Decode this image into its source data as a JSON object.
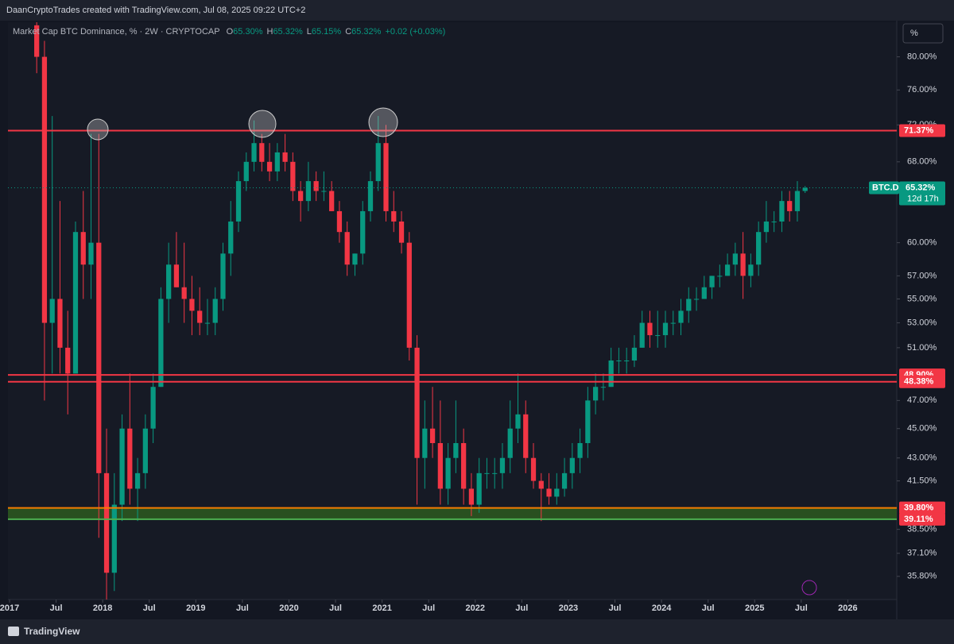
{
  "attribution": "DaanCryptoTrades created with TradingView.com, Jul 08, 2025 09:22 UTC+2",
  "unit_button": "%",
  "brand": "TradingView",
  "chart_data": {
    "type": "candlestick",
    "title": "Market Cap BTC Dominance, % · 2W · CRYPTOCAP",
    "ohlc_legend": [
      {
        "key": "O",
        "value": "65.30%"
      },
      {
        "key": "H",
        "value": "65.32%"
      },
      {
        "key": "L",
        "value": "65.15%"
      },
      {
        "key": "C",
        "value": "65.32%"
      }
    ],
    "change": "+0.02 (+0.03%)",
    "log_scale": true,
    "up_color": "#089981",
    "down_color": "#f23645",
    "ylim": [
      33.7,
      84.4
    ],
    "xlim": [
      "2017-01",
      "2026-07"
    ],
    "yticks": [
      {
        "value": 80,
        "label": "80.00%"
      },
      {
        "value": 76,
        "label": "76.00%"
      },
      {
        "value": 72,
        "label": "72.00%"
      },
      {
        "value": 68,
        "label": "68.00%"
      },
      {
        "value": 60,
        "label": "60.00%"
      },
      {
        "value": 57,
        "label": "57.00%"
      },
      {
        "value": 55,
        "label": "55.00%"
      },
      {
        "value": 53,
        "label": "53.00%"
      },
      {
        "value": 51,
        "label": "51.00%"
      },
      {
        "value": 47,
        "label": "47.00%"
      },
      {
        "value": 45,
        "label": "45.00%"
      },
      {
        "value": 43,
        "label": "43.00%"
      },
      {
        "value": 41.5,
        "label": "41.50%"
      },
      {
        "value": 38.5,
        "label": "38.50%"
      },
      {
        "value": 37.1,
        "label": "37.10%"
      },
      {
        "value": 35.8,
        "label": "35.80%"
      }
    ],
    "xticks": [
      {
        "value": "2017-01",
        "label": "2017"
      },
      {
        "value": "2017-07",
        "label": "Jul"
      },
      {
        "value": "2018-01",
        "label": "2018"
      },
      {
        "value": "2018-07",
        "label": "Jul"
      },
      {
        "value": "2019-01",
        "label": "2019"
      },
      {
        "value": "2019-07",
        "label": "Jul"
      },
      {
        "value": "2020-01",
        "label": "2020"
      },
      {
        "value": "2020-07",
        "label": "Jul"
      },
      {
        "value": "2021-01",
        "label": "2021"
      },
      {
        "value": "2021-07",
        "label": "Jul"
      },
      {
        "value": "2022-01",
        "label": "2022"
      },
      {
        "value": "2022-07",
        "label": "Jul"
      },
      {
        "value": "2023-01",
        "label": "2023"
      },
      {
        "value": "2023-07",
        "label": "Jul"
      },
      {
        "value": "2024-01",
        "label": "2024"
      },
      {
        "value": "2024-07",
        "label": "Jul"
      },
      {
        "value": "2025-01",
        "label": "2025"
      },
      {
        "value": "2025-07",
        "label": "Jul"
      },
      {
        "value": "2026-01",
        "label": "2026"
      }
    ],
    "levels": [
      {
        "value": 71.37,
        "label": "71.37%",
        "color": "#f23645"
      },
      {
        "value": 48.9,
        "label": "48.90%",
        "color": "#f23645"
      },
      {
        "value": 48.38,
        "label": "48.38%",
        "color": "#f23645"
      },
      {
        "value": 39.8,
        "label": "39.80%",
        "color": "#f57c00"
      },
      {
        "value": 39.11,
        "label": "39.11%",
        "color": "#4caf50"
      }
    ],
    "zone": {
      "low": 39.11,
      "high": 39.8,
      "color": "#2e5e1f"
    },
    "last": {
      "symbol": "BTC.D",
      "value": 65.32,
      "label": "65.32%",
      "countdown": "12d 17h",
      "color": "#089981"
    },
    "x": [
      "2017-04",
      "2017-05",
      "2017-06",
      "2017-07",
      "2017-08",
      "2017-09",
      "2017-10",
      "2017-11",
      "2017-12",
      "2018-01",
      "2018-02",
      "2018-03",
      "2018-04",
      "2018-05",
      "2018-06",
      "2018-07",
      "2018-08",
      "2018-09",
      "2018-10",
      "2018-11",
      "2018-12",
      "2019-01",
      "2019-02",
      "2019-03",
      "2019-04",
      "2019-05",
      "2019-06",
      "2019-07",
      "2019-08",
      "2019-09",
      "2019-10",
      "2019-11",
      "2019-12",
      "2020-01",
      "2020-02",
      "2020-03",
      "2020-04",
      "2020-05",
      "2020-06",
      "2020-07",
      "2020-08",
      "2020-09",
      "2020-10",
      "2020-11",
      "2020-12",
      "2021-01",
      "2021-02",
      "2021-03",
      "2021-04",
      "2021-05",
      "2021-06",
      "2021-07",
      "2021-08",
      "2021-09",
      "2021-10",
      "2021-11",
      "2021-12",
      "2022-01",
      "2022-02",
      "2022-03",
      "2022-04",
      "2022-05",
      "2022-06",
      "2022-07",
      "2022-08",
      "2022-09",
      "2022-10",
      "2022-11",
      "2022-12",
      "2023-01",
      "2023-02",
      "2023-03",
      "2023-04",
      "2023-05",
      "2023-06",
      "2023-07",
      "2023-08",
      "2023-09",
      "2023-10",
      "2023-11",
      "2023-12",
      "2024-01",
      "2024-02",
      "2024-03",
      "2024-04",
      "2024-05",
      "2024-06",
      "2024-07",
      "2024-08",
      "2024-09",
      "2024-10",
      "2024-11",
      "2024-12",
      "2025-01",
      "2025-02",
      "2025-03",
      "2025-04",
      "2025-05",
      "2025-06",
      "2025-07"
    ],
    "open": [
      84,
      80,
      53,
      55,
      51,
      49,
      61,
      58,
      60,
      42,
      36,
      40,
      45,
      41,
      42,
      45,
      48,
      55,
      58,
      56,
      55,
      54,
      53,
      53,
      55,
      59,
      62,
      66,
      68,
      70,
      68,
      67,
      69,
      68,
      65,
      64,
      66,
      65,
      65,
      63,
      61,
      58,
      59,
      63,
      66,
      70,
      63,
      62,
      60,
      51,
      43,
      45,
      44,
      41,
      43,
      44,
      41,
      40,
      42,
      42,
      42,
      43,
      45,
      46,
      43,
      41.5,
      41,
      40.5,
      41,
      42,
      43,
      44,
      47,
      48,
      48,
      50,
      50,
      50,
      51,
      53,
      52,
      52,
      53,
      53,
      54,
      55,
      55,
      56,
      57,
      57,
      58,
      59,
      57,
      58,
      61,
      62,
      62,
      64,
      63,
      65
    ],
    "high": [
      86,
      82,
      73,
      64,
      54,
      62,
      65,
      71,
      71,
      45,
      42,
      46,
      49,
      43,
      46,
      49,
      56,
      60,
      61,
      60,
      57,
      56,
      55,
      56,
      60,
      64,
      67,
      69,
      72.5,
      71,
      70,
      70,
      71,
      69,
      66,
      68,
      67,
      67,
      66,
      64,
      62,
      59,
      64,
      67,
      73,
      72,
      65,
      63,
      61,
      52,
      47,
      48,
      47,
      44,
      47,
      45,
      42,
      43,
      43,
      43,
      44,
      47,
      49,
      47,
      44,
      42,
      42,
      42,
      43,
      44,
      45,
      48,
      49,
      49,
      51,
      51,
      51,
      52,
      54,
      54,
      54,
      54,
      54,
      55,
      56,
      56,
      57,
      57,
      58,
      59,
      60,
      61,
      59,
      62,
      64,
      63,
      65,
      65,
      66,
      65.5
    ],
    "low": [
      78,
      47,
      49,
      49,
      46,
      49,
      55,
      55,
      38,
      34,
      35,
      39,
      40,
      39,
      41,
      44,
      48,
      53,
      56,
      53,
      52,
      52,
      52,
      52,
      54,
      57,
      61,
      65,
      67,
      67,
      66,
      66,
      67,
      64,
      62,
      63,
      64,
      64,
      63,
      60,
      57,
      57,
      58,
      62,
      65,
      62,
      61,
      59,
      50,
      40,
      41,
      43,
      40,
      40,
      42,
      40,
      39.3,
      39.5,
      41,
      41,
      41,
      42,
      44,
      42,
      41,
      39,
      40,
      40,
      40.5,
      41,
      42,
      43,
      46,
      47,
      48,
      49,
      49,
      49.5,
      51,
      51,
      51,
      51,
      52,
      52,
      53,
      54,
      55,
      55,
      56,
      57,
      57,
      55,
      56,
      57,
      60,
      61,
      61,
      62,
      62,
      64.8
    ],
    "close": [
      80,
      53,
      55,
      51,
      49,
      61,
      58,
      60,
      42,
      36,
      40,
      45,
      41,
      42,
      45,
      48,
      55,
      58,
      56,
      55,
      54,
      53,
      53,
      55,
      59,
      62,
      66,
      68,
      70,
      68,
      67,
      69,
      68,
      65,
      64,
      66,
      65,
      65,
      63,
      61,
      58,
      59,
      63,
      66,
      70,
      63,
      62,
      60,
      51,
      43,
      45,
      44,
      41,
      43,
      44,
      41,
      40,
      42,
      42,
      42,
      43,
      45,
      46,
      43,
      41.5,
      41,
      40.5,
      41,
      42,
      43,
      44,
      47,
      48,
      48,
      50,
      50,
      50,
      51,
      53,
      52,
      52,
      53,
      53,
      54,
      55,
      55,
      56,
      57,
      57,
      58,
      59,
      57,
      58,
      61,
      62,
      62,
      64,
      63,
      65,
      65.32
    ]
  }
}
